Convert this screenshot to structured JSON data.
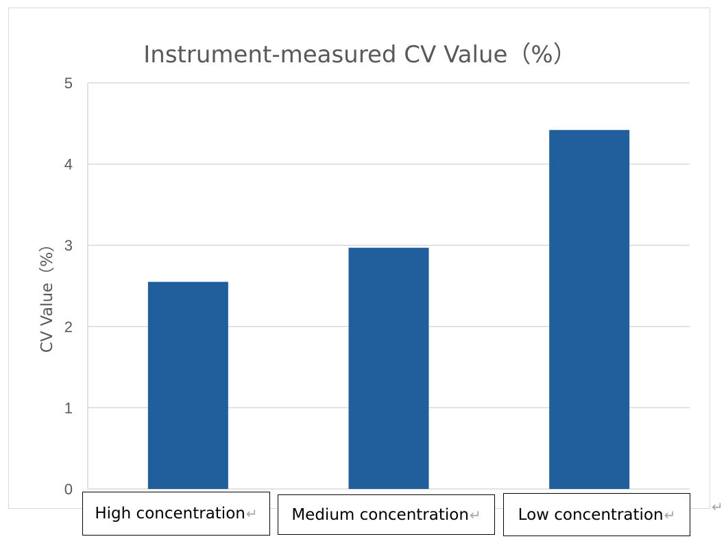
{
  "chart_data": {
    "type": "bar",
    "title": "Instrument-measured CV Value（%）",
    "ylabel": "CV Value（%）",
    "xlabel": "",
    "categories": [
      "High concentration",
      "Medium concentration",
      "Low concentration"
    ],
    "values": [
      2.55,
      2.97,
      4.42
    ],
    "ylim": [
      0,
      5
    ],
    "yticks": [
      "0",
      "1",
      "2",
      "3",
      "4",
      "5"
    ],
    "grid": true,
    "bar_color": "#205f9c"
  },
  "paragraph_mark": "↵"
}
